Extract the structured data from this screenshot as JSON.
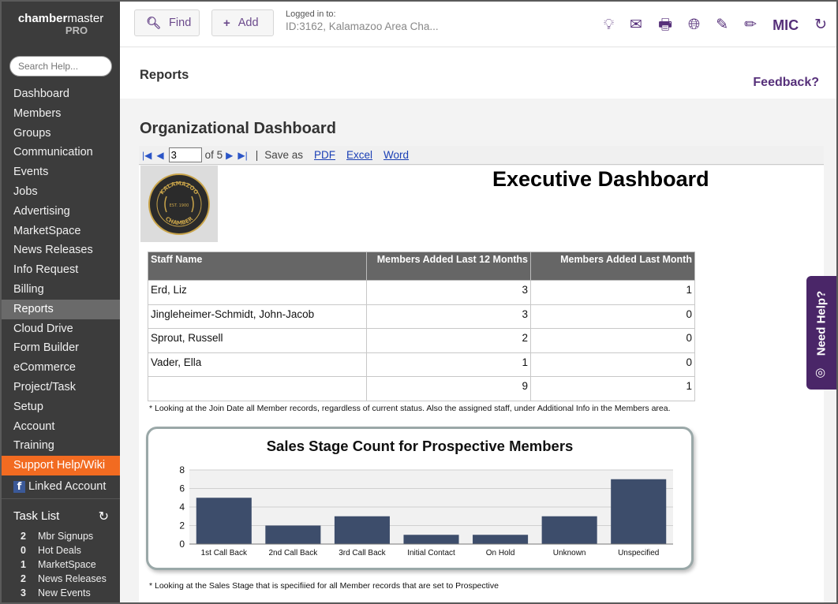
{
  "brand": {
    "name_bold": "chamber",
    "name_rest": "master",
    "sub": "PRO"
  },
  "sidebar": {
    "search_placeholder": "Search Help...",
    "items": [
      {
        "label": "Dashboard"
      },
      {
        "label": "Members"
      },
      {
        "label": "Groups"
      },
      {
        "label": "Communication"
      },
      {
        "label": "Events"
      },
      {
        "label": "Jobs"
      },
      {
        "label": "Advertising"
      },
      {
        "label": "MarketSpace"
      },
      {
        "label": "News Releases"
      },
      {
        "label": "Info Request"
      },
      {
        "label": "Billing"
      },
      {
        "label": "Reports"
      },
      {
        "label": "Cloud Drive"
      },
      {
        "label": "Form Builder"
      },
      {
        "label": "eCommerce"
      },
      {
        "label": "Project/Task"
      },
      {
        "label": "Setup"
      },
      {
        "label": "Account"
      },
      {
        "label": "Training"
      }
    ],
    "active_item": "Reports",
    "support_label": "Support Help/Wiki",
    "linked_account_label": "Linked Account",
    "task_list": {
      "title": "Task List",
      "items": [
        {
          "count": "2",
          "label": "Mbr Signups"
        },
        {
          "count": "0",
          "label": "Hot Deals"
        },
        {
          "count": "1",
          "label": "MarketSpace"
        },
        {
          "count": "2",
          "label": "News Releases"
        },
        {
          "count": "3",
          "label": "New Events"
        }
      ]
    }
  },
  "topbar": {
    "find_label": "Find",
    "add_label": "Add",
    "logged_in_label": "Logged in to:",
    "logged_in_value": "ID:3162, Kalamazoo Area Cha...",
    "mic_label": "MIC",
    "icons": [
      "lightbulb-icon",
      "mail-icon",
      "print-icon",
      "globe-icon",
      "edit-icon",
      "pencil-icon",
      "refresh-icon"
    ]
  },
  "page": {
    "section_title": "Reports",
    "feedback_label": "Feedback?",
    "dashboard_title": "Organizational Dashboard"
  },
  "report_toolbar": {
    "page_value": "3",
    "of_pages": "of 5",
    "separator": "|",
    "save_as": "Save as",
    "formats": [
      "PDF",
      "Excel",
      "Word"
    ]
  },
  "report": {
    "title": "Executive Dashboard",
    "logo_text": {
      "top": "KALAMAZOO",
      "middle": "EST. 1900",
      "bottom": "CHAMBER"
    },
    "table": {
      "headers": [
        "Staff Name",
        "Members Added Last 12 Months",
        "Members Added Last Month"
      ],
      "rows": [
        [
          "Erd, Liz",
          "3",
          "1"
        ],
        [
          "Jingleheimer-Schmidt, John-Jacob",
          "3",
          "0"
        ],
        [
          "Sprout, Russell",
          "2",
          "0"
        ],
        [
          "Vader, Ella",
          "1",
          "0"
        ],
        [
          "",
          "9",
          "1"
        ]
      ]
    },
    "note1": "* Looking at the  Join Date all Member records, regardless of current status. Also the assigned staff, under Additional Info in the Members area.",
    "note2": "* Looking at the Sales Stage that is specifiied for all Member records that are set to Prospective"
  },
  "chart_data": {
    "type": "bar",
    "title": "Sales Stage Count for Prospective Members",
    "categories": [
      "1st Call Back",
      "2nd Call Back",
      "3rd Call Back",
      "Initial Contact",
      "On Hold",
      "Unknown",
      "Unspecified"
    ],
    "values": [
      5,
      2,
      3,
      1,
      1,
      3,
      7
    ],
    "ylim": [
      0,
      8
    ],
    "yticks": [
      0,
      2,
      4,
      6,
      8
    ],
    "grid": true,
    "bar_color": "#3d4d6b",
    "xlabel": "",
    "ylabel": ""
  },
  "need_help_label": "Need Help?",
  "colors": {
    "accent": "#56307a",
    "support": "#f26b21",
    "sidebar": "#3c3c3c"
  }
}
